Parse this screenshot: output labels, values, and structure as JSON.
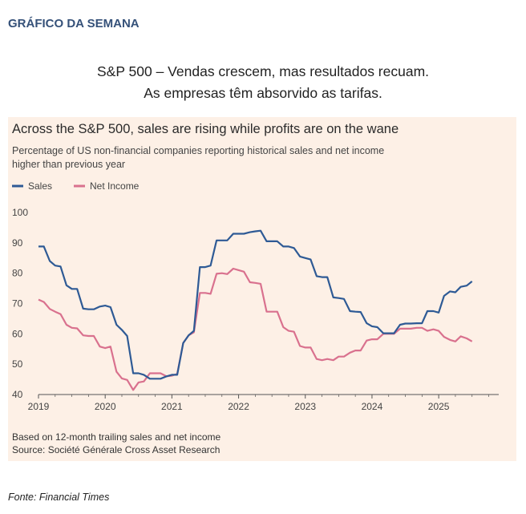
{
  "section_label": "GRÁFICO DA SEMANA",
  "headline": {
    "line1": "S&P 500 – Vendas crescem, mas resultados recuam.",
    "line2": "As empresas têm absorvido as tarifas."
  },
  "source_credit": "Fonte: Financial Times",
  "chart_data": {
    "type": "line",
    "title": "Across the S&P 500, sales are rising while profits are on the wane",
    "subtitle_lines": [
      "Percentage of US non-financial companies reporting historical sales and net income",
      "higher than previous year"
    ],
    "xlabel": "",
    "ylabel": "",
    "ylim": [
      40,
      100
    ],
    "yticks": [
      100,
      90,
      80,
      70,
      60,
      50,
      40
    ],
    "xlim": [
      2019,
      2025.9
    ],
    "xticks": [
      "2019",
      "2020",
      "2021",
      "2022",
      "2023",
      "2024",
      "2025"
    ],
    "legend": "top-left",
    "grid": false,
    "colors": {
      "sales": "#2e5a95",
      "net_income": "#d9718e",
      "axis": "#555555",
      "text": "#2b2b2b"
    },
    "series": [
      {
        "name": "Sales",
        "points": [
          [
            2019.0,
            88.8
          ],
          [
            2019.08,
            88.8
          ],
          [
            2019.17,
            84
          ],
          [
            2019.25,
            82.5
          ],
          [
            2019.33,
            82.2
          ],
          [
            2019.42,
            76
          ],
          [
            2019.5,
            74.8
          ],
          [
            2019.58,
            74.8
          ],
          [
            2019.67,
            68.3
          ],
          [
            2019.75,
            68.1
          ],
          [
            2019.83,
            68.1
          ],
          [
            2019.92,
            69
          ],
          [
            2020.0,
            69.3
          ],
          [
            2020.08,
            68.8
          ],
          [
            2020.17,
            63
          ],
          [
            2020.25,
            61.3
          ],
          [
            2020.33,
            59.3
          ],
          [
            2020.42,
            47
          ],
          [
            2020.5,
            47
          ],
          [
            2020.58,
            46.5
          ],
          [
            2020.67,
            45.2
          ],
          [
            2020.75,
            45.2
          ],
          [
            2020.83,
            45.2
          ],
          [
            2020.92,
            46
          ],
          [
            2021.0,
            46.5
          ],
          [
            2021.08,
            46.5
          ],
          [
            2021.17,
            57
          ],
          [
            2021.25,
            59.5
          ],
          [
            2021.33,
            61
          ],
          [
            2021.42,
            82
          ],
          [
            2021.5,
            82
          ],
          [
            2021.58,
            82.5
          ],
          [
            2021.67,
            90.8
          ],
          [
            2021.75,
            90.8
          ],
          [
            2021.83,
            90.8
          ],
          [
            2021.92,
            93
          ],
          [
            2022.0,
            93
          ],
          [
            2022.08,
            93
          ],
          [
            2022.17,
            93.5
          ],
          [
            2022.25,
            93.8
          ],
          [
            2022.33,
            94
          ],
          [
            2022.42,
            90.5
          ],
          [
            2022.5,
            90.5
          ],
          [
            2022.58,
            90.5
          ],
          [
            2022.67,
            88.8
          ],
          [
            2022.75,
            88.8
          ],
          [
            2022.83,
            88.3
          ],
          [
            2022.92,
            85.5
          ],
          [
            2023.0,
            85
          ],
          [
            2023.08,
            84.5
          ],
          [
            2023.17,
            79
          ],
          [
            2023.25,
            78.7
          ],
          [
            2023.33,
            78.7
          ],
          [
            2023.42,
            72
          ],
          [
            2023.5,
            71.8
          ],
          [
            2023.58,
            71.5
          ],
          [
            2023.67,
            67.5
          ],
          [
            2023.75,
            67.3
          ],
          [
            2023.83,
            67.2
          ],
          [
            2023.92,
            63.5
          ],
          [
            2024.0,
            62.5
          ],
          [
            2024.08,
            62.2
          ],
          [
            2024.17,
            60.2
          ],
          [
            2024.25,
            60.2
          ],
          [
            2024.33,
            60.2
          ],
          [
            2024.42,
            63
          ],
          [
            2024.5,
            63.4
          ],
          [
            2024.58,
            63.4
          ],
          [
            2024.67,
            63.5
          ],
          [
            2024.75,
            63.5
          ],
          [
            2024.83,
            67.5
          ],
          [
            2024.92,
            67.5
          ],
          [
            2025.0,
            67
          ],
          [
            2025.08,
            72.5
          ],
          [
            2025.17,
            74
          ],
          [
            2025.25,
            73.7
          ],
          [
            2025.33,
            75.5
          ],
          [
            2025.42,
            75.9
          ],
          [
            2025.5,
            77.3
          ]
        ]
      },
      {
        "name": "Net Income",
        "points": [
          [
            2019.0,
            71.3
          ],
          [
            2019.08,
            70.5
          ],
          [
            2019.17,
            68.2
          ],
          [
            2019.25,
            67.3
          ],
          [
            2019.33,
            66.5
          ],
          [
            2019.42,
            63
          ],
          [
            2019.5,
            62
          ],
          [
            2019.58,
            61.8
          ],
          [
            2019.67,
            59.5
          ],
          [
            2019.75,
            59.3
          ],
          [
            2019.83,
            59.3
          ],
          [
            2019.92,
            55.8
          ],
          [
            2020.0,
            55.3
          ],
          [
            2020.08,
            55.8
          ],
          [
            2020.17,
            47.5
          ],
          [
            2020.25,
            45.3
          ],
          [
            2020.33,
            44.8
          ],
          [
            2020.42,
            41.5
          ],
          [
            2020.5,
            44
          ],
          [
            2020.58,
            44.3
          ],
          [
            2020.67,
            47
          ],
          [
            2020.75,
            47
          ],
          [
            2020.83,
            47
          ],
          [
            2020.92,
            46
          ],
          [
            2021.0,
            46.2
          ],
          [
            2021.08,
            46.8
          ],
          [
            2021.17,
            57
          ],
          [
            2021.25,
            59.5
          ],
          [
            2021.33,
            60.5
          ],
          [
            2021.42,
            73.5
          ],
          [
            2021.5,
            73.5
          ],
          [
            2021.58,
            73.2
          ],
          [
            2021.67,
            79.8
          ],
          [
            2021.75,
            80
          ],
          [
            2021.83,
            79.7
          ],
          [
            2021.92,
            81.5
          ],
          [
            2022.0,
            81
          ],
          [
            2022.08,
            80.5
          ],
          [
            2022.17,
            77
          ],
          [
            2022.25,
            76.8
          ],
          [
            2022.33,
            76.5
          ],
          [
            2022.42,
            67.3
          ],
          [
            2022.5,
            67.3
          ],
          [
            2022.58,
            67.3
          ],
          [
            2022.67,
            62.2
          ],
          [
            2022.75,
            61
          ],
          [
            2022.83,
            60.7
          ],
          [
            2022.92,
            56
          ],
          [
            2023.0,
            55.5
          ],
          [
            2023.08,
            55.5
          ],
          [
            2023.17,
            51.7
          ],
          [
            2023.25,
            51.3
          ],
          [
            2023.33,
            51.7
          ],
          [
            2023.42,
            51.3
          ],
          [
            2023.5,
            52.5
          ],
          [
            2023.58,
            52.5
          ],
          [
            2023.67,
            53.8
          ],
          [
            2023.75,
            54.5
          ],
          [
            2023.83,
            54.5
          ],
          [
            2023.92,
            57.8
          ],
          [
            2024.0,
            58.2
          ],
          [
            2024.08,
            58.2
          ],
          [
            2024.17,
            60
          ],
          [
            2024.25,
            60
          ],
          [
            2024.33,
            60
          ],
          [
            2024.42,
            61.7
          ],
          [
            2024.5,
            61.7
          ],
          [
            2024.58,
            61.7
          ],
          [
            2024.67,
            62
          ],
          [
            2024.75,
            62
          ],
          [
            2024.83,
            61
          ],
          [
            2024.92,
            61.5
          ],
          [
            2025.0,
            61
          ],
          [
            2025.08,
            59
          ],
          [
            2025.17,
            58
          ],
          [
            2025.25,
            57.5
          ],
          [
            2025.33,
            59.2
          ],
          [
            2025.42,
            58.5
          ],
          [
            2025.5,
            57.5
          ]
        ]
      }
    ],
    "footnote": "Based on 12-month trailing sales and net income",
    "source": "Source: Société Générale Cross Asset Research"
  }
}
